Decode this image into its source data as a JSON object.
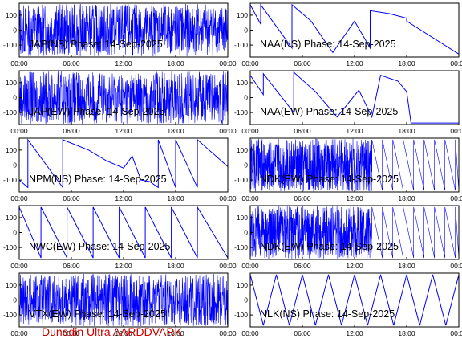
{
  "footer_text": "Dunedin Ultra AARDDVARK",
  "colors": {
    "trace": "#0000ff",
    "frame": "#000000",
    "footer": "#cc0000"
  },
  "chart_data": [
    {
      "id": "jap-ns",
      "title": "JAP(NS) Phase: 14-Sep-2025",
      "type": "line",
      "style": "dense",
      "x": [
        0,
        18,
        18.3,
        24
      ],
      "y": [
        0,
        0,
        0,
        0
      ],
      "ylim": [
        -180,
        180
      ],
      "xlim": [
        0,
        24
      ]
    },
    {
      "id": "naa-ns",
      "title": "NAA(NS) Phase: 14-Sep-2025",
      "type": "line",
      "style": "sawtooth",
      "x": [
        0,
        1.2,
        1.2,
        4.8,
        4.8,
        7,
        9.5,
        12,
        13.8,
        13.8,
        16,
        18,
        18,
        24
      ],
      "y": [
        170,
        40,
        170,
        -120,
        170,
        60,
        -150,
        60,
        -120,
        130,
        110,
        80,
        60,
        -160
      ],
      "ylim": [
        -180,
        180
      ],
      "xlim": [
        0,
        24
      ]
    },
    {
      "id": "jap-ew",
      "title": "JAP(EW) Phase: 14-Sep-2025",
      "type": "line",
      "style": "dense",
      "x": [
        0,
        24
      ],
      "y": [
        0,
        0
      ],
      "ylim": [
        -180,
        180
      ],
      "xlim": [
        0,
        24
      ]
    },
    {
      "id": "naa-ew",
      "title": "NAA(EW) Phase: 14-Sep-2025",
      "type": "line",
      "style": "sawtooth",
      "x": [
        0,
        1.5,
        1.5,
        5,
        5,
        7.5,
        10,
        12.5,
        14,
        15,
        17,
        18,
        18.5,
        24
      ],
      "y": [
        150,
        20,
        160,
        -100,
        170,
        40,
        -130,
        50,
        -130,
        150,
        110,
        40,
        -170,
        -170
      ],
      "ylim": [
        -180,
        180
      ],
      "xlim": [
        0,
        24
      ]
    },
    {
      "id": "npm-ns",
      "title": "NPM(NS) Phase: 14-Sep-2025",
      "type": "line",
      "style": "sawtooth",
      "x": [
        0,
        1,
        1,
        5,
        5,
        8,
        10,
        12,
        13,
        14,
        15,
        16,
        16,
        18,
        18,
        20.5,
        20.5,
        24
      ],
      "y": [
        -100,
        -150,
        170,
        -150,
        170,
        100,
        30,
        -20,
        60,
        -100,
        -110,
        -150,
        170,
        -150,
        170,
        -150,
        170,
        -10
      ],
      "ylim": [
        -180,
        180
      ],
      "xlim": [
        0,
        24
      ]
    },
    {
      "id": "ndk-ew-1",
      "title": "NDK(EW) Phase: 14-Sep-2025",
      "type": "line",
      "style": "dense-sawtooth",
      "x": [
        0,
        14,
        24
      ],
      "y": [
        0,
        0,
        0
      ],
      "ylim": [
        -180,
        180
      ],
      "xlim": [
        0,
        24
      ]
    },
    {
      "id": "nwc-ew",
      "title": "NWC(EW) Phase: 14-Sep-2025",
      "type": "line",
      "style": "sawtooth",
      "x": [
        0,
        2.5,
        2.5,
        5.5,
        5.5,
        8.5,
        8.5,
        11.5,
        11.5,
        14.5,
        14.5,
        17.5,
        17.5,
        20.5,
        20.5,
        24
      ],
      "y": [
        170,
        -170,
        170,
        -170,
        170,
        -170,
        170,
        -170,
        170,
        -170,
        170,
        -170,
        170,
        -170,
        170,
        -170
      ],
      "ylim": [
        -180,
        180
      ],
      "xlim": [
        0,
        24
      ]
    },
    {
      "id": "ndk-ew-2",
      "title": "NDK(EW) Phase: 14-Sep-2025",
      "type": "line",
      "style": "dense-sawtooth",
      "x": [
        0,
        14,
        24
      ],
      "y": [
        0,
        0,
        0
      ],
      "ylim": [
        -180,
        180
      ],
      "xlim": [
        0,
        24
      ]
    },
    {
      "id": "vtx-ew",
      "title": "VTX(EW) Phase: 14-Sep-2025",
      "type": "line",
      "style": "dense",
      "x": [
        0,
        24
      ],
      "y": [
        0,
        0
      ],
      "ylim": [
        -180,
        180
      ],
      "xlim": [
        0,
        24
      ]
    },
    {
      "id": "nlk-ns",
      "title": "NLK(NS) Phase: 14-Sep-2025",
      "type": "line",
      "style": "sawtooth",
      "x": [
        0,
        1.5,
        3,
        4.5,
        6,
        7.5,
        9,
        10.5,
        12,
        13.5,
        15,
        16.5,
        18,
        19.5,
        21,
        22.5,
        24
      ],
      "y": [
        170,
        -170,
        170,
        -170,
        170,
        -170,
        170,
        -170,
        170,
        -170,
        170,
        -170,
        170,
        -170,
        170,
        -170,
        170
      ],
      "ylim": [
        -180,
        180
      ],
      "xlim": [
        0,
        24
      ]
    }
  ],
  "axes": {
    "xticks": [
      "00:00",
      "06:00",
      "12:00",
      "18:00",
      "00:00"
    ],
    "yticks": [
      "100",
      "0",
      "-100"
    ]
  }
}
